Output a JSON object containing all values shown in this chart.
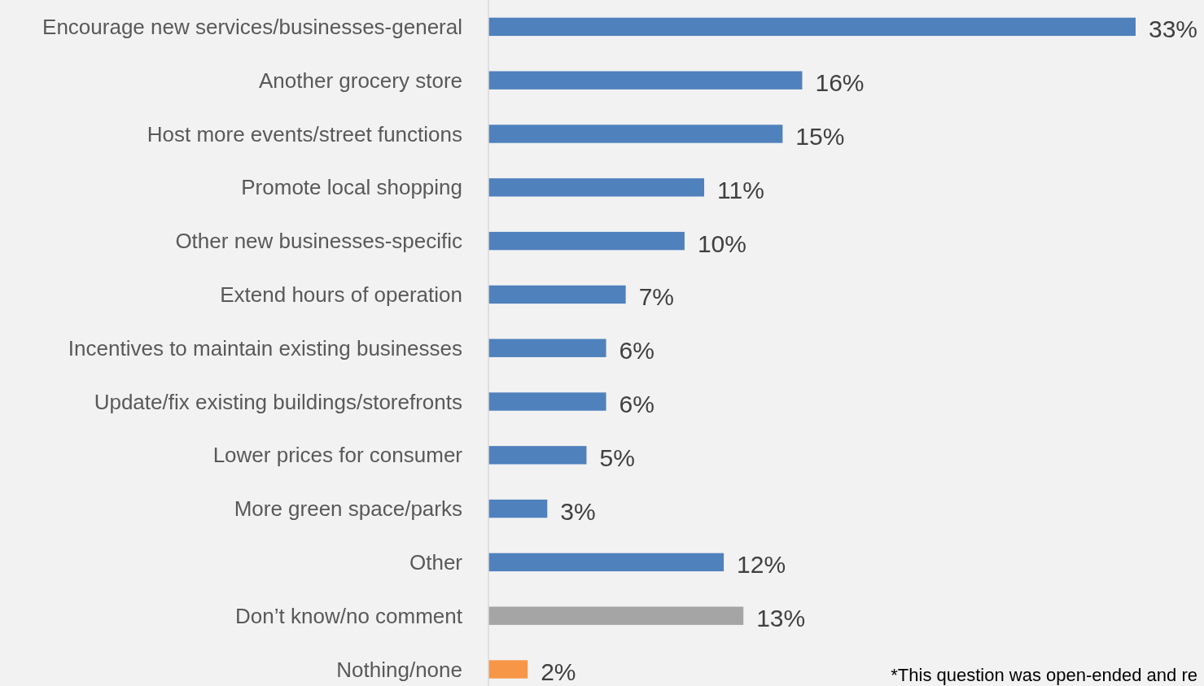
{
  "chart_data": {
    "type": "bar",
    "orientation": "horizontal",
    "categories": [
      "Encourage new services/businesses-general",
      "Another grocery store",
      "Host more events/street functions",
      "Promote local shopping",
      "Other new businesses-specific",
      "Extend hours of operation",
      "Incentives to maintain existing businesses",
      "Update/fix existing buildings/storefronts",
      "Lower prices for consumer",
      "More green space/parks",
      "Other",
      "Don’t know/no comment",
      "Nothing/none"
    ],
    "values": [
      33,
      16,
      15,
      11,
      10,
      7,
      6,
      6,
      5,
      3,
      12,
      13,
      2
    ],
    "value_labels": [
      "33%",
      "16%",
      "15%",
      "11%",
      "10%",
      "7%",
      "6%",
      "6%",
      "5%",
      "3%",
      "12%",
      "13%",
      "2%"
    ],
    "colors": [
      "#4f81bd",
      "#4f81bd",
      "#4f81bd",
      "#4f81bd",
      "#4f81bd",
      "#4f81bd",
      "#4f81bd",
      "#4f81bd",
      "#4f81bd",
      "#4f81bd",
      "#4f81bd",
      "#a5a5a5",
      "#f79646"
    ],
    "annotations": [
      "*This question was open-ended and re"
    ]
  }
}
